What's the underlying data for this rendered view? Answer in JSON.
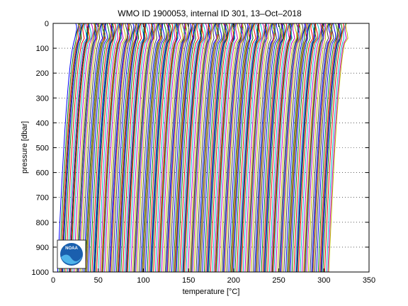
{
  "chart_data": {
    "type": "line",
    "title": "WMO ID 1900053, internal ID 301, 13–Oct–2018",
    "xlabel": "temperature [°C]",
    "ylabel": "pressure [dbar]",
    "xlim": [
      0,
      350
    ],
    "ylim": [
      1000,
      0
    ],
    "y_reversed": true,
    "xticks": [
      0,
      50,
      100,
      150,
      200,
      250,
      300,
      350
    ],
    "yticks": [
      0,
      100,
      200,
      300,
      400,
      500,
      600,
      700,
      800,
      900,
      1000
    ],
    "grid": "dotted",
    "series_count": 300,
    "offset_per_profile": 1,
    "first_profile_surface": 25,
    "first_profile_deep": 5,
    "series_colors": [
      "#0000ff",
      "#008000",
      "#ff0000",
      "#00bfbf",
      "#bf00bf",
      "#bfbf00",
      "#404040"
    ],
    "logo": {
      "text": "NOAA",
      "position": "bottom-left"
    }
  }
}
